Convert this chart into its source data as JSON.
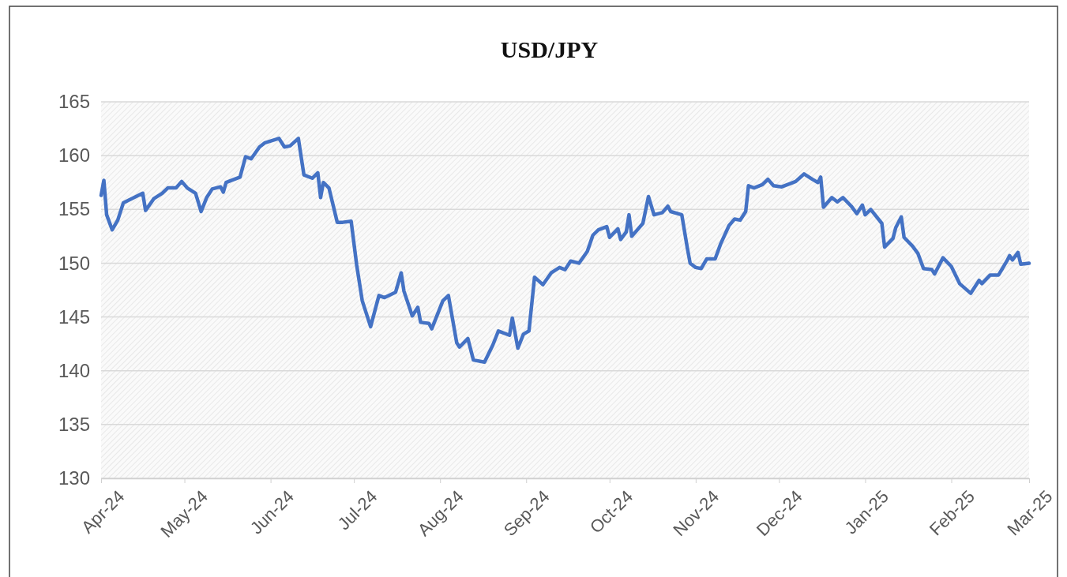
{
  "chart_data": {
    "type": "line",
    "title": "USD/JPY",
    "x": [
      "2024-04-01",
      "2024-04-02",
      "2024-04-03",
      "2024-04-05",
      "2024-04-07",
      "2024-04-09",
      "2024-04-12",
      "2024-04-16",
      "2024-04-17",
      "2024-04-20",
      "2024-04-23",
      "2024-04-25",
      "2024-04-28",
      "2024-04-30",
      "2024-05-02",
      "2024-05-05",
      "2024-05-07",
      "2024-05-09",
      "2024-05-11",
      "2024-05-14",
      "2024-05-15",
      "2024-05-16",
      "2024-05-21",
      "2024-05-23",
      "2024-05-25",
      "2024-05-28",
      "2024-05-30",
      "2024-06-04",
      "2024-06-06",
      "2024-06-08",
      "2024-06-11",
      "2024-06-13",
      "2024-06-16",
      "2024-06-18",
      "2024-06-19",
      "2024-06-20",
      "2024-06-22",
      "2024-06-25",
      "2024-06-27",
      "2024-06-30",
      "2024-07-02",
      "2024-07-04",
      "2024-07-07",
      "2024-07-10",
      "2024-07-12",
      "2024-07-16",
      "2024-07-18",
      "2024-07-19",
      "2024-07-22",
      "2024-07-24",
      "2024-07-25",
      "2024-07-28",
      "2024-07-29",
      "2024-08-02",
      "2024-08-04",
      "2024-08-07",
      "2024-08-08",
      "2024-08-11",
      "2024-08-13",
      "2024-08-17",
      "2024-08-20",
      "2024-08-22",
      "2024-08-26",
      "2024-08-27",
      "2024-08-29",
      "2024-08-31",
      "2024-09-02",
      "2024-09-04",
      "2024-09-07",
      "2024-09-10",
      "2024-09-13",
      "2024-09-15",
      "2024-09-17",
      "2024-09-20",
      "2024-09-23",
      "2024-09-25",
      "2024-09-27",
      "2024-09-30",
      "2024-10-01",
      "2024-10-04",
      "2024-10-05",
      "2024-10-07",
      "2024-10-08",
      "2024-10-09",
      "2024-10-13",
      "2024-10-15",
      "2024-10-17",
      "2024-10-20",
      "2024-10-22",
      "2024-10-23",
      "2024-10-27",
      "2024-10-29",
      "2024-10-30",
      "2024-11-01",
      "2024-11-03",
      "2024-11-05",
      "2024-11-08",
      "2024-11-10",
      "2024-11-13",
      "2024-11-15",
      "2024-11-17",
      "2024-11-19",
      "2024-11-20",
      "2024-11-22",
      "2024-11-25",
      "2024-11-27",
      "2024-11-29",
      "2024-12-02",
      "2024-12-05",
      "2024-12-07",
      "2024-12-10",
      "2024-12-13",
      "2024-12-15",
      "2024-12-16",
      "2024-12-17",
      "2024-12-20",
      "2024-12-22",
      "2024-12-24",
      "2024-12-27",
      "2024-12-29",
      "2024-12-31",
      "2025-01-01",
      "2025-01-03",
      "2025-01-07",
      "2025-01-08",
      "2025-01-11",
      "2025-01-12",
      "2025-01-14",
      "2025-01-15",
      "2025-01-18",
      "2025-01-20",
      "2025-01-22",
      "2025-01-25",
      "2025-01-26",
      "2025-01-29",
      "2025-02-01",
      "2025-02-04",
      "2025-02-08",
      "2025-02-11",
      "2025-02-12",
      "2025-02-15",
      "2025-02-18",
      "2025-02-21",
      "2025-02-22",
      "2025-02-23",
      "2025-02-25",
      "2025-02-26",
      "2025-03-01"
    ],
    "series": [
      {
        "color": "#4472c4",
        "values": [
          156.3,
          157.7,
          154.5,
          153.1,
          154.0,
          155.6,
          156.0,
          156.5,
          154.9,
          156.0,
          156.5,
          157.0,
          157.0,
          157.6,
          157.0,
          156.5,
          154.8,
          156.1,
          156.9,
          157.1,
          156.6,
          157.5,
          158.0,
          159.9,
          159.7,
          160.8,
          161.2,
          161.6,
          160.8,
          160.9,
          161.6,
          158.2,
          157.9,
          158.4,
          156.1,
          157.5,
          157.0,
          153.8,
          153.8,
          153.9,
          149.8,
          146.5,
          144.1,
          147.0,
          146.8,
          147.3,
          149.1,
          147.4,
          145.1,
          145.9,
          144.5,
          144.4,
          143.9,
          146.5,
          147.0,
          142.6,
          142.2,
          143.0,
          141.0,
          140.8,
          142.4,
          143.7,
          143.3,
          144.9,
          142.1,
          143.4,
          143.7,
          148.7,
          148.0,
          149.1,
          149.6,
          149.4,
          150.2,
          150.0,
          151.1,
          152.6,
          153.1,
          153.4,
          152.4,
          153.2,
          152.2,
          152.9,
          154.5,
          152.5,
          153.7,
          156.2,
          154.5,
          154.7,
          155.3,
          154.8,
          154.5,
          151.4,
          150.0,
          149.6,
          149.5,
          150.4,
          150.4,
          151.8,
          153.5,
          154.1,
          154.0,
          154.8,
          157.2,
          157.0,
          157.3,
          157.8,
          157.2,
          157.1,
          157.4,
          157.6,
          158.3,
          157.8,
          157.5,
          158.0,
          155.2,
          156.1,
          155.7,
          156.1,
          155.3,
          154.6,
          155.4,
          154.5,
          155.0,
          153.7,
          151.5,
          152.3,
          153.3,
          154.3,
          152.4,
          151.6,
          150.9,
          149.5,
          149.4,
          149.0,
          150.5,
          149.7,
          148.1,
          147.2,
          148.4,
          148.1,
          148.9,
          148.9,
          150.2,
          150.7,
          150.3,
          151.0,
          149.9,
          150.0
        ]
      }
    ],
    "xlim": [
      "2024-04-01",
      "2025-03-01"
    ],
    "xticks": [
      {
        "value": "2024-04-01",
        "label": "Apr-24"
      },
      {
        "value": "2024-05-01",
        "label": "May-24"
      },
      {
        "value": "2024-06-01",
        "label": "Jun-24"
      },
      {
        "value": "2024-07-01",
        "label": "Jul-24"
      },
      {
        "value": "2024-08-01",
        "label": "Aug-24"
      },
      {
        "value": "2024-09-01",
        "label": "Sep-24"
      },
      {
        "value": "2024-10-01",
        "label": "Oct-24"
      },
      {
        "value": "2024-11-01",
        "label": "Nov-24"
      },
      {
        "value": "2024-12-01",
        "label": "Dec-24"
      },
      {
        "value": "2025-01-01",
        "label": "Jan-25"
      },
      {
        "value": "2025-02-01",
        "label": "Feb-25"
      },
      {
        "value": "2025-03-01",
        "label": "Mar-25"
      }
    ],
    "ylim": [
      130,
      165
    ],
    "yticks": [
      130,
      135,
      140,
      145,
      150,
      155,
      160,
      165
    ],
    "grid": "y",
    "marker": "none",
    "line_style": "solid"
  }
}
